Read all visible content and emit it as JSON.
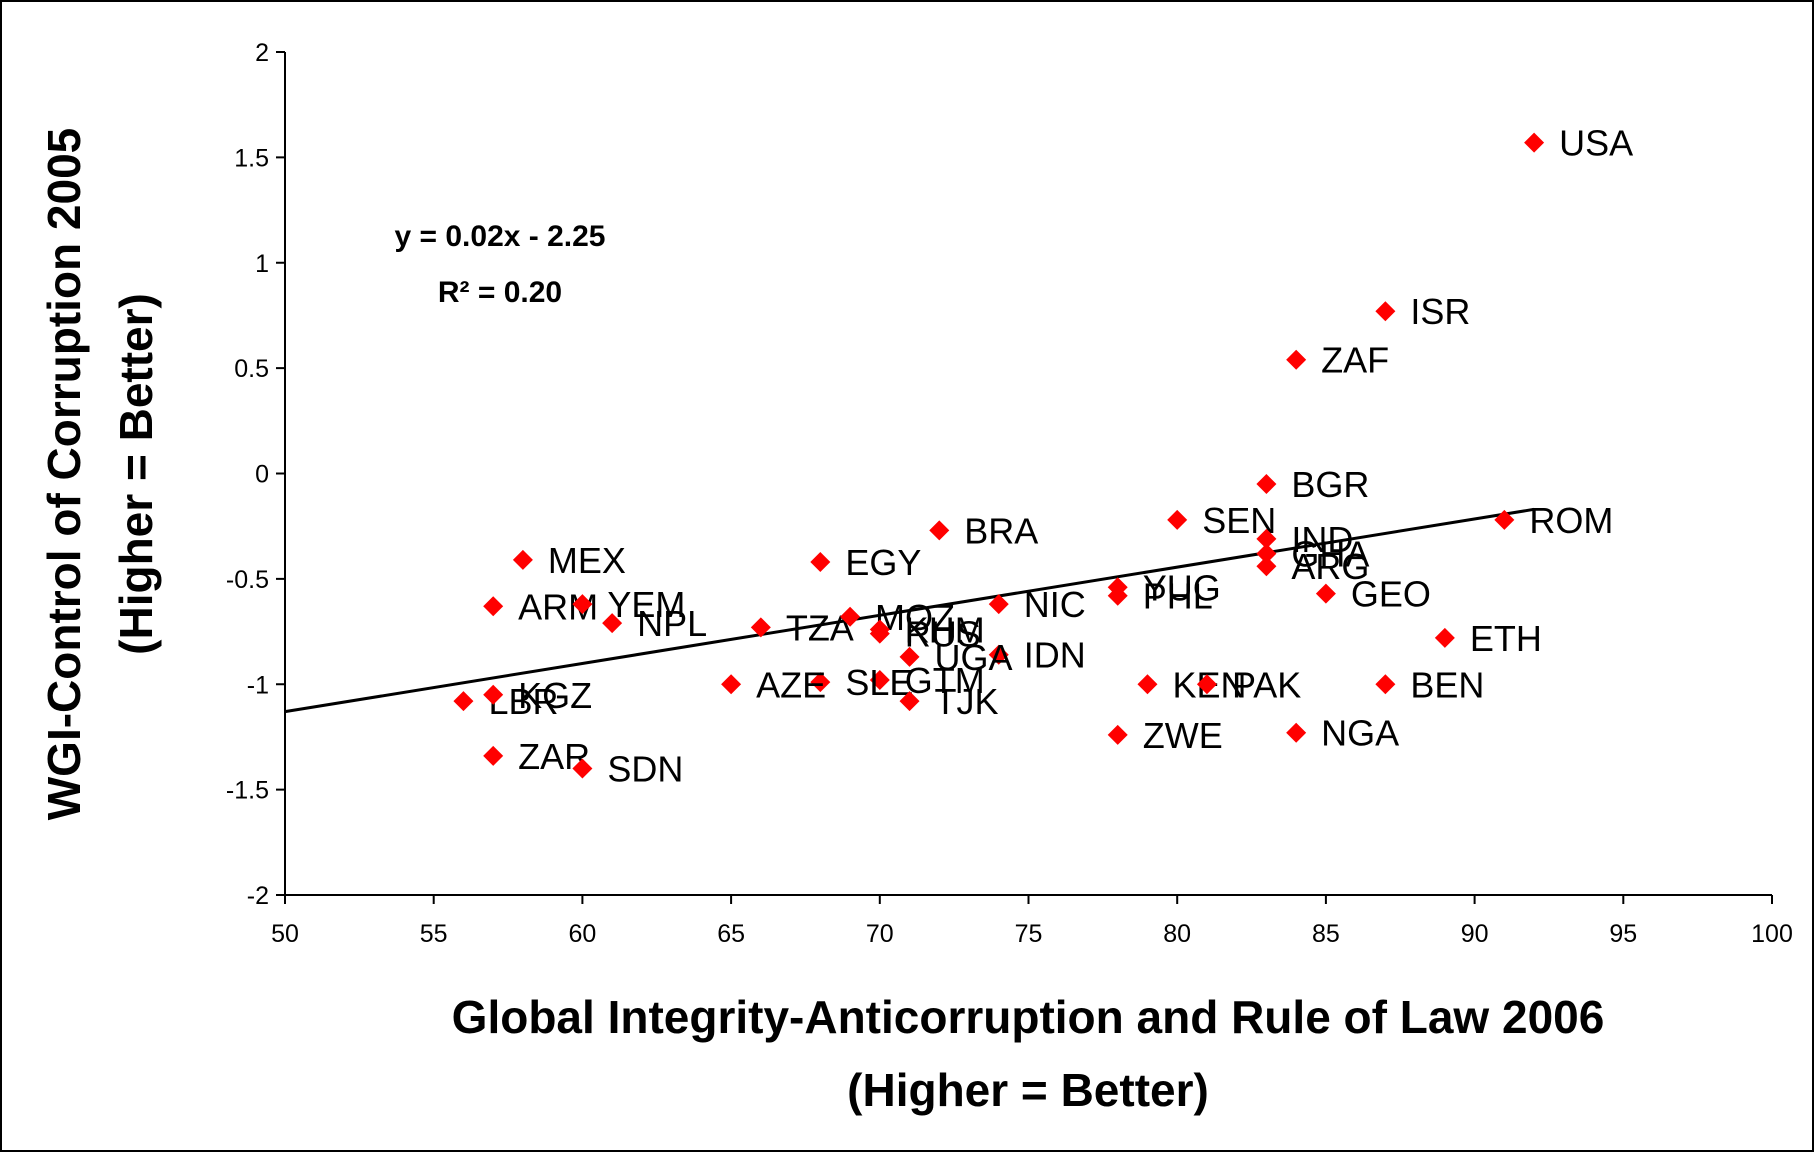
{
  "chart_data": {
    "type": "scatter",
    "x_label": [
      "Global Integrity-Anticorruption and Rule of Law 2006",
      "(Higher = Better)"
    ],
    "y_label": [
      "WGI-Control of Corruption 2005",
      "(Higher = Better)"
    ],
    "annotations": [
      "y = 0.02x - 2.25",
      "R² = 0.20"
    ],
    "xlim": [
      50,
      100
    ],
    "ylim": [
      -2,
      2
    ],
    "xticks": [
      50,
      55,
      60,
      65,
      70,
      75,
      80,
      85,
      90,
      95,
      100
    ],
    "yticks": [
      -2,
      -1.5,
      -1,
      -0.5,
      0,
      0.5,
      1,
      1.5,
      2
    ],
    "series": [
      {
        "color": "#ff0000",
        "labels": [
          "USA",
          "ISR",
          "ZAF",
          "BGR",
          "SEN",
          "ROM",
          "BRA",
          "MEX",
          "EGY",
          "IND",
          "GHA",
          "ARG",
          "GEO",
          "YUG",
          "PHL",
          "NIC",
          "ARM",
          "YEM",
          "NPL",
          "TZA",
          "MOZ",
          "ETH",
          "KHM",
          "RUS",
          "IDN",
          "UGA",
          "GTM",
          "SLE",
          "AZE",
          "TJK",
          "KEN",
          "PAK",
          "BEN",
          "LBR",
          "KGZ",
          "ZWE",
          "NGA",
          "ZAR",
          "SDN"
        ],
        "x": [
          92,
          87,
          84,
          83,
          80,
          91,
          72,
          58,
          68,
          83,
          83,
          83,
          85,
          78,
          78,
          74,
          57,
          60,
          61,
          66,
          69,
          89,
          70,
          70,
          74,
          71,
          70,
          68,
          65,
          71,
          79,
          81,
          87,
          56,
          57,
          78,
          84,
          57,
          60
        ],
        "values": [
          1.57,
          0.77,
          0.54,
          -0.05,
          -0.22,
          -0.22,
          -0.27,
          -0.41,
          -0.42,
          -0.31,
          -0.38,
          -0.44,
          -0.57,
          -0.54,
          -0.58,
          -0.62,
          -0.63,
          -0.62,
          -0.71,
          -0.73,
          -0.68,
          -0.78,
          -0.74,
          -0.76,
          -0.86,
          -0.87,
          -0.98,
          -0.99,
          -1.0,
          -1.08,
          -1.0,
          -1.0,
          -1.0,
          -1.08,
          -1.05,
          -1.24,
          -1.23,
          -1.34,
          -1.4
        ]
      }
    ],
    "trendline": {
      "color": "#000000",
      "x": [
        50,
        92
      ],
      "values": [
        -1.13,
        -0.17
      ]
    }
  }
}
